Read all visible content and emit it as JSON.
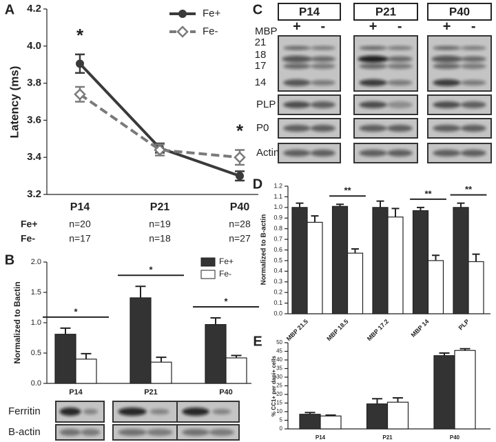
{
  "chart_data": [
    {
      "type": "line",
      "panel_label": "A",
      "y_label": "Latency (ms)",
      "categories": [
        "P14",
        "P21",
        "P40"
      ],
      "series": [
        {
          "name": "Fe+",
          "color": "#3a3a3a",
          "marker": "circle",
          "dash": false,
          "values": [
            3.905,
            3.45,
            3.3
          ],
          "errors": [
            0.05,
            0.025,
            0.025
          ]
        },
        {
          "name": "Fe-",
          "color": "#7a7a7a",
          "marker": "diamond",
          "dash": true,
          "values": [
            3.74,
            3.44,
            3.4
          ],
          "errors": [
            0.04,
            0.03,
            0.04
          ]
        }
      ],
      "significance": [
        "*",
        null,
        "*"
      ],
      "ylim": [
        3.2,
        4.2
      ],
      "yticks": [
        3.2,
        3.4,
        3.6,
        3.8,
        {
          "value": 4.0,
          "label": "4.0"
        },
        4.2
      ],
      "n_table": [
        [
          "Fe+",
          "n=20",
          "n=19",
          "n=28"
        ],
        [
          "Fe-",
          "n=17",
          "n=18",
          "n=27"
        ]
      ]
    },
    {
      "type": "bar",
      "panel_label": "B",
      "y_label": "Normalized to Bactin",
      "categories": [
        "P14",
        "P21",
        "P40"
      ],
      "series": [
        {
          "name": "Fe+",
          "color": "#333333",
          "values": [
            0.81,
            1.41,
            0.97
          ],
          "errors": [
            0.1,
            0.19,
            0.11
          ]
        },
        {
          "name": "Fe-",
          "color": "#ffffff",
          "values": [
            0.4,
            0.35,
            0.42
          ],
          "errors": [
            0.09,
            0.08,
            0.04
          ]
        }
      ],
      "significance": [
        "*",
        "*",
        "*"
      ],
      "ylim": [
        0,
        2.0
      ],
      "yticks": [
        {
          "value": 0,
          "label": "0.0"
        },
        0.5,
        {
          "value": 1,
          "label": "1.0"
        },
        1.5,
        {
          "value": 2,
          "label": "2.0"
        }
      ],
      "blot_labels": [
        "Ferritin",
        "B-actin"
      ]
    },
    {
      "type": "bar",
      "panel_label": "D",
      "y_label": "Normalized to  B-actin",
      "categories": [
        "MBP 21.5",
        "MBP 18.5",
        "MBP 17.2",
        "MBP 14",
        "PLP"
      ],
      "series": [
        {
          "color": "#333333",
          "values": [
            1.0,
            1.01,
            1.0,
            0.97,
            1.0
          ],
          "errors": [
            0.04,
            0.02,
            0.06,
            0.03,
            0.04
          ]
        },
        {
          "color": "#ffffff",
          "values": [
            0.86,
            0.57,
            0.91,
            0.5,
            0.49
          ],
          "errors": [
            0.06,
            0.04,
            0.08,
            0.05,
            0.07
          ]
        }
      ],
      "significance": [
        null,
        "**",
        null,
        "**",
        "**"
      ],
      "ylim": [
        0,
        1.2
      ],
      "yticks": [
        {
          "value": 0,
          "label": "0.0"
        },
        0.1,
        0.2,
        0.3,
        0.4,
        0.5,
        0.6,
        0.7,
        0.8,
        0.9,
        {
          "value": 1,
          "label": "1.0"
        },
        1.1,
        1.2
      ]
    },
    {
      "type": "bar",
      "panel_label": "E",
      "y_label": "% CC1+ per dapi+ cells",
      "categories": [
        "P14",
        "P21",
        "P40"
      ],
      "series": [
        {
          "color": "#333333",
          "values": [
            8.5,
            14.5,
            42.5
          ],
          "errors": [
            1.0,
            3.0,
            1.5
          ]
        },
        {
          "color": "#ffffff",
          "values": [
            7.5,
            15.5,
            45.5
          ],
          "errors": [
            0.5,
            2.5,
            1.0
          ]
        }
      ],
      "ylim": [
        0,
        50
      ],
      "yticks": [
        0,
        5,
        10,
        15,
        20,
        25,
        30,
        35,
        40,
        45,
        50
      ]
    }
  ],
  "blots": {
    "panel_label": "C",
    "groups": [
      "P14",
      "P21",
      "P40"
    ],
    "lane_header": "MBP",
    "lanes": [
      "+",
      "-"
    ],
    "markers": [
      "21",
      "18",
      "17",
      "14"
    ],
    "rows": [
      "PLP",
      "P0",
      "Actin"
    ]
  }
}
